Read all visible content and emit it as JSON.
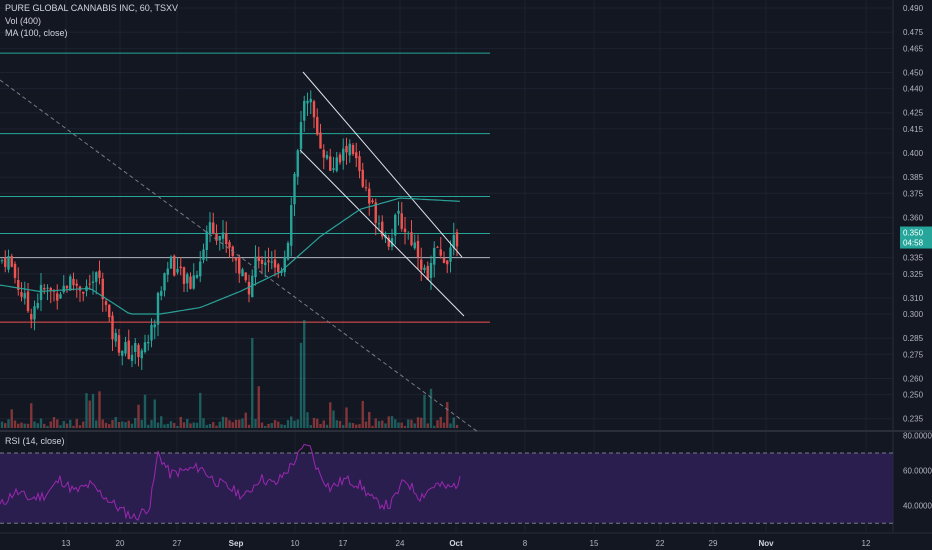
{
  "header": {
    "symbol_line": "PURE GLOBAL CANNABIS INC, 60, TSXV",
    "volume_line": "Vol (400)",
    "ma_line": "MA (100, close)"
  },
  "rsi_panel": {
    "title": "RSI (14, close)",
    "ticks": [
      "80.0000",
      "60.0000",
      "40.0000"
    ],
    "band_color": "#2a1e4f",
    "line_color": "#9c27b0"
  },
  "price_label": {
    "price": "0.350",
    "countdown": "04:58",
    "color": "#26a69a"
  },
  "colors": {
    "up": "#26a69a",
    "down": "#ef5350",
    "background": "#131722",
    "ma": "#2aa198"
  },
  "chart_data": {
    "type": "candlestick",
    "yticks": [
      "0.490",
      "0.475",
      "0.465",
      "0.450",
      "0.440",
      "0.425",
      "0.415",
      "0.400",
      "0.385",
      "0.375",
      "0.360",
      "0.350",
      "0.335",
      "0.325",
      "0.310",
      "0.300",
      "0.285",
      "0.275",
      "0.260",
      "0.250",
      "0.235"
    ],
    "ylim": [
      0.228,
      0.495
    ],
    "xticks": [
      "13",
      "20",
      "27",
      "Sep",
      "10",
      "17",
      "24",
      "Oct",
      "8",
      "15",
      "22",
      "29",
      "Nov",
      "12"
    ],
    "bold_xticks": [
      "Sep",
      "Oct",
      "Nov"
    ],
    "horizontal_levels": [
      {
        "value": 0.462,
        "color": "#26a69a"
      },
      {
        "value": 0.412,
        "color": "#26a69a"
      },
      {
        "value": 0.373,
        "color": "#26a69a"
      },
      {
        "value": 0.35,
        "color": "#26a69a"
      },
      {
        "value": 0.335,
        "color": "#b2b5be"
      },
      {
        "value": 0.295,
        "color": "#ef5350"
      }
    ],
    "price_anchors": [
      [
        0,
        0.333
      ],
      [
        8,
        0.335
      ],
      [
        18,
        0.318
      ],
      [
        30,
        0.3
      ],
      [
        42,
        0.315
      ],
      [
        55,
        0.313
      ],
      [
        70,
        0.32
      ],
      [
        85,
        0.316
      ],
      [
        100,
        0.324
      ],
      [
        110,
        0.29
      ],
      [
        120,
        0.28
      ],
      [
        130,
        0.276
      ],
      [
        145,
        0.28
      ],
      [
        152,
        0.29
      ],
      [
        160,
        0.315
      ],
      [
        170,
        0.335
      ],
      [
        180,
        0.323
      ],
      [
        190,
        0.318
      ],
      [
        200,
        0.333
      ],
      [
        210,
        0.358
      ],
      [
        218,
        0.35
      ],
      [
        228,
        0.345
      ],
      [
        238,
        0.33
      ],
      [
        248,
        0.316
      ],
      [
        258,
        0.335
      ],
      [
        268,
        0.335
      ],
      [
        278,
        0.322
      ],
      [
        288,
        0.348
      ],
      [
        295,
        0.39
      ],
      [
        302,
        0.42
      ],
      [
        308,
        0.44
      ],
      [
        315,
        0.415
      ],
      [
        322,
        0.405
      ],
      [
        330,
        0.39
      ],
      [
        340,
        0.395
      ],
      [
        348,
        0.405
      ],
      [
        358,
        0.392
      ],
      [
        368,
        0.37
      ],
      [
        378,
        0.36
      ],
      [
        388,
        0.345
      ],
      [
        398,
        0.36
      ],
      [
        408,
        0.35
      ],
      [
        418,
        0.34
      ],
      [
        426,
        0.322
      ],
      [
        434,
        0.338
      ],
      [
        442,
        0.334
      ],
      [
        450,
        0.338
      ],
      [
        458,
        0.349
      ]
    ],
    "ma_anchors": [
      [
        0,
        0.318
      ],
      [
        40,
        0.314
      ],
      [
        90,
        0.316
      ],
      [
        130,
        0.3
      ],
      [
        160,
        0.3
      ],
      [
        200,
        0.304
      ],
      [
        240,
        0.314
      ],
      [
        280,
        0.326
      ],
      [
        320,
        0.348
      ],
      [
        360,
        0.365
      ],
      [
        400,
        0.372
      ],
      [
        430,
        0.371
      ],
      [
        460,
        0.37
      ]
    ],
    "rsi_anchors": [
      [
        0,
        40
      ],
      [
        15,
        48
      ],
      [
        30,
        44
      ],
      [
        45,
        46
      ],
      [
        60,
        55
      ],
      [
        75,
        48
      ],
      [
        90,
        52
      ],
      [
        105,
        45
      ],
      [
        120,
        38
      ],
      [
        135,
        33
      ],
      [
        150,
        40
      ],
      [
        158,
        70
      ],
      [
        170,
        58
      ],
      [
        185,
        60
      ],
      [
        200,
        62
      ],
      [
        215,
        54
      ],
      [
        230,
        50
      ],
      [
        245,
        45
      ],
      [
        260,
        56
      ],
      [
        275,
        52
      ],
      [
        290,
        62
      ],
      [
        300,
        70
      ],
      [
        308,
        76
      ],
      [
        318,
        60
      ],
      [
        330,
        50
      ],
      [
        345,
        55
      ],
      [
        360,
        52
      ],
      [
        375,
        42
      ],
      [
        390,
        40
      ],
      [
        405,
        55
      ],
      [
        420,
        45
      ],
      [
        435,
        52
      ],
      [
        450,
        50
      ],
      [
        460,
        54
      ]
    ],
    "rsi_levels": [
      70,
      30
    ]
  }
}
